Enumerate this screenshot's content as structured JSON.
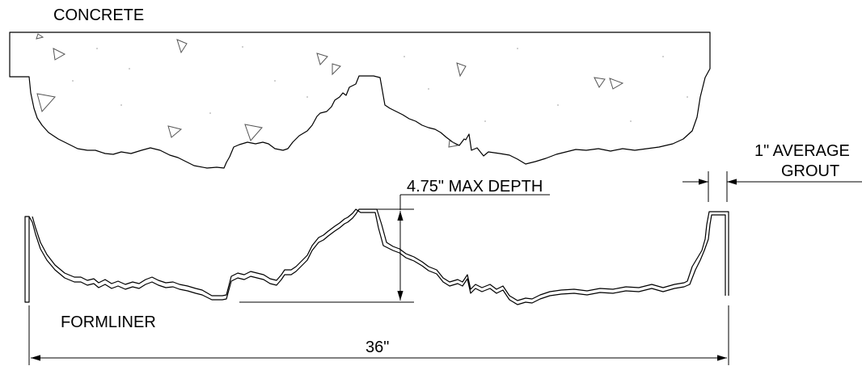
{
  "labels": {
    "concrete": "CONCRETE",
    "formliner": "FORMLINER",
    "max_depth": "4.75\" MAX DEPTH",
    "grout_line1": "1\" AVERAGE",
    "grout_line2": "GROUT",
    "width": "36\""
  }
}
